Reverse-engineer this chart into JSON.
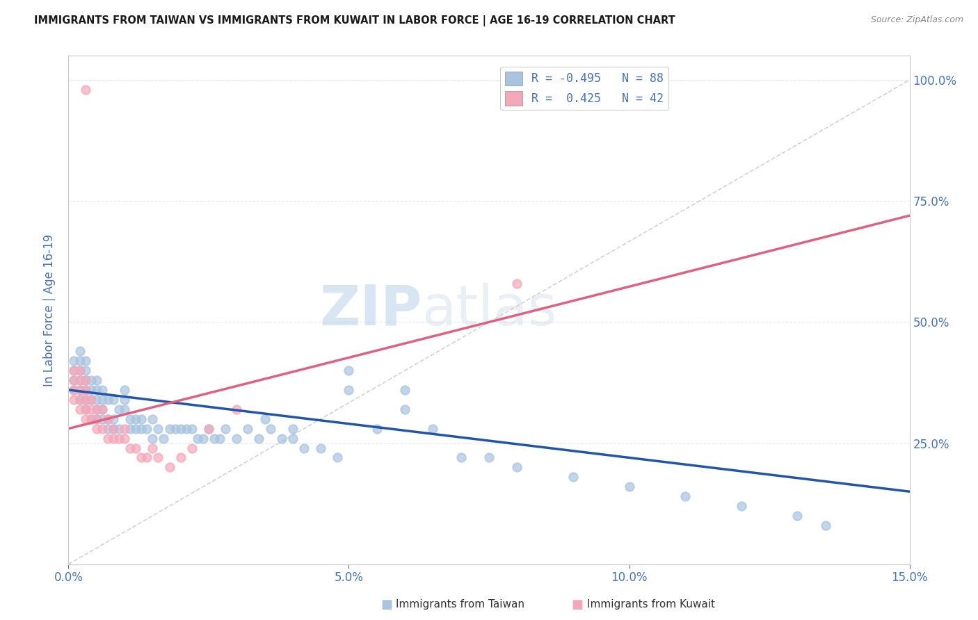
{
  "title": "IMMIGRANTS FROM TAIWAN VS IMMIGRANTS FROM KUWAIT IN LABOR FORCE | AGE 16-19 CORRELATION CHART",
  "source_text": "Source: ZipAtlas.com",
  "ylabel": "In Labor Force | Age 16-19",
  "xlim": [
    0.0,
    0.15
  ],
  "ylim": [
    0.0,
    1.05
  ],
  "xtick_labels": [
    "0.0%",
    "5.0%",
    "10.0%",
    "15.0%"
  ],
  "xtick_values": [
    0.0,
    0.05,
    0.1,
    0.15
  ],
  "ytick_labels_right": [
    "25.0%",
    "50.0%",
    "75.0%",
    "100.0%"
  ],
  "ytick_values_right": [
    0.25,
    0.5,
    0.75,
    1.0
  ],
  "taiwan_color": "#a8c4e0",
  "kuwait_color": "#f4a7b9",
  "taiwan_line_color": "#2255aa",
  "kuwait_line_color": "#e06080",
  "ref_line_color": "#c8c8c8",
  "legend_taiwan_R": "-0.495",
  "legend_taiwan_N": "88",
  "legend_kuwait_R": " 0.425",
  "legend_kuwait_N": "42",
  "watermark_zip": "ZIP",
  "watermark_atlas": "atlas",
  "taiwan_scatter_x": [
    0.001,
    0.001,
    0.001,
    0.001,
    0.002,
    0.002,
    0.002,
    0.002,
    0.002,
    0.002,
    0.003,
    0.003,
    0.003,
    0.003,
    0.003,
    0.003,
    0.004,
    0.004,
    0.004,
    0.004,
    0.005,
    0.005,
    0.005,
    0.005,
    0.005,
    0.006,
    0.006,
    0.006,
    0.006,
    0.007,
    0.007,
    0.007,
    0.008,
    0.008,
    0.008,
    0.009,
    0.009,
    0.01,
    0.01,
    0.01,
    0.011,
    0.011,
    0.012,
    0.012,
    0.013,
    0.013,
    0.014,
    0.015,
    0.015,
    0.016,
    0.017,
    0.018,
    0.019,
    0.02,
    0.021,
    0.022,
    0.023,
    0.024,
    0.025,
    0.026,
    0.027,
    0.028,
    0.03,
    0.032,
    0.034,
    0.036,
    0.038,
    0.04,
    0.042,
    0.045,
    0.048,
    0.05,
    0.055,
    0.06,
    0.065,
    0.07,
    0.075,
    0.08,
    0.09,
    0.1,
    0.11,
    0.12,
    0.13,
    0.05,
    0.06,
    0.035,
    0.04,
    0.135
  ],
  "taiwan_scatter_y": [
    0.36,
    0.38,
    0.4,
    0.42,
    0.34,
    0.36,
    0.38,
    0.4,
    0.42,
    0.44,
    0.32,
    0.34,
    0.36,
    0.38,
    0.4,
    0.42,
    0.3,
    0.34,
    0.36,
    0.38,
    0.3,
    0.32,
    0.34,
    0.36,
    0.38,
    0.3,
    0.32,
    0.34,
    0.36,
    0.28,
    0.3,
    0.34,
    0.28,
    0.3,
    0.34,
    0.28,
    0.32,
    0.32,
    0.34,
    0.36,
    0.28,
    0.3,
    0.28,
    0.3,
    0.28,
    0.3,
    0.28,
    0.26,
    0.3,
    0.28,
    0.26,
    0.28,
    0.28,
    0.28,
    0.28,
    0.28,
    0.26,
    0.26,
    0.28,
    0.26,
    0.26,
    0.28,
    0.26,
    0.28,
    0.26,
    0.28,
    0.26,
    0.28,
    0.24,
    0.24,
    0.22,
    0.36,
    0.28,
    0.32,
    0.28,
    0.22,
    0.22,
    0.2,
    0.18,
    0.16,
    0.14,
    0.12,
    0.1,
    0.4,
    0.36,
    0.3,
    0.26,
    0.08
  ],
  "kuwait_scatter_x": [
    0.001,
    0.001,
    0.001,
    0.001,
    0.002,
    0.002,
    0.002,
    0.002,
    0.002,
    0.003,
    0.003,
    0.003,
    0.003,
    0.003,
    0.004,
    0.004,
    0.004,
    0.005,
    0.005,
    0.005,
    0.006,
    0.006,
    0.007,
    0.007,
    0.008,
    0.008,
    0.009,
    0.01,
    0.01,
    0.011,
    0.012,
    0.013,
    0.014,
    0.015,
    0.016,
    0.018,
    0.02,
    0.022,
    0.025,
    0.03,
    0.003,
    0.08
  ],
  "kuwait_scatter_y": [
    0.34,
    0.36,
    0.38,
    0.4,
    0.32,
    0.34,
    0.36,
    0.38,
    0.4,
    0.3,
    0.32,
    0.34,
    0.36,
    0.38,
    0.3,
    0.32,
    0.34,
    0.28,
    0.3,
    0.32,
    0.28,
    0.32,
    0.26,
    0.3,
    0.26,
    0.28,
    0.26,
    0.26,
    0.28,
    0.24,
    0.24,
    0.22,
    0.22,
    0.24,
    0.22,
    0.2,
    0.22,
    0.24,
    0.28,
    0.32,
    0.98,
    0.58
  ],
  "taiwan_trend_x": [
    0.0,
    0.15
  ],
  "taiwan_trend_y": [
    0.36,
    0.15
  ],
  "kuwait_trend_x": [
    0.0,
    0.15
  ],
  "kuwait_trend_y": [
    0.28,
    0.72
  ],
  "ref_line_x": [
    0.0,
    0.15
  ],
  "ref_line_y": [
    0.0,
    1.0
  ],
  "background_color": "#ffffff",
  "grid_color": "#e8e8e8",
  "axis_label_color": "#4472c4",
  "fig_width": 14.06,
  "fig_height": 8.92,
  "dpi": 100
}
